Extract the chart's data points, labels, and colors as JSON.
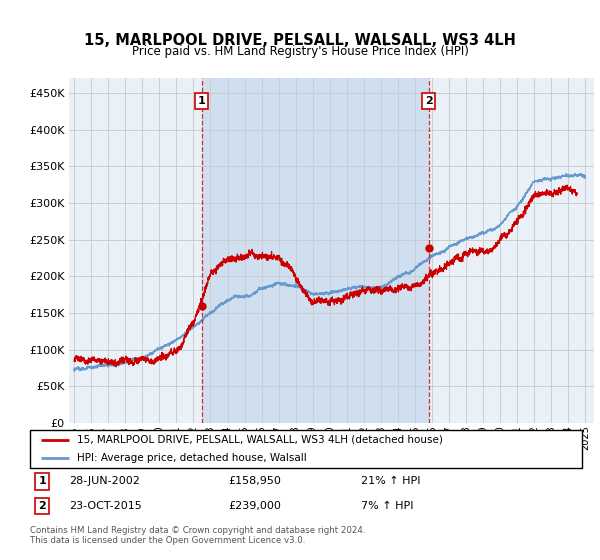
{
  "title": "15, MARLPOOL DRIVE, PELSALL, WALSALL, WS3 4LH",
  "subtitle": "Price paid vs. HM Land Registry's House Price Index (HPI)",
  "ylim": [
    0,
    470000
  ],
  "yticks": [
    0,
    50000,
    100000,
    150000,
    200000,
    250000,
    300000,
    350000,
    400000,
    450000
  ],
  "xlim_start": 1994.7,
  "xlim_end": 2025.5,
  "background_color": "#eaf0f8",
  "shade_color": "#d0dff0",
  "grid_color": "#cccccc",
  "hpi_line_color": "#6699cc",
  "price_line_color": "#cc0000",
  "sale1_x": 2002.487,
  "sale1_y": 158950,
  "sale2_x": 2015.81,
  "sale2_y": 239000,
  "legend_label1": "15, MARLPOOL DRIVE, PELSALL, WALSALL, WS3 4LH (detached house)",
  "legend_label2": "HPI: Average price, detached house, Walsall",
  "annotation1_date": "28-JUN-2002",
  "annotation1_price": "£158,950",
  "annotation1_hpi": "21% ↑ HPI",
  "annotation2_date": "23-OCT-2015",
  "annotation2_price": "£239,000",
  "annotation2_hpi": "7% ↑ HPI",
  "footnote1": "Contains HM Land Registry data © Crown copyright and database right 2024.",
  "footnote2": "This data is licensed under the Open Government Licence v3.0."
}
